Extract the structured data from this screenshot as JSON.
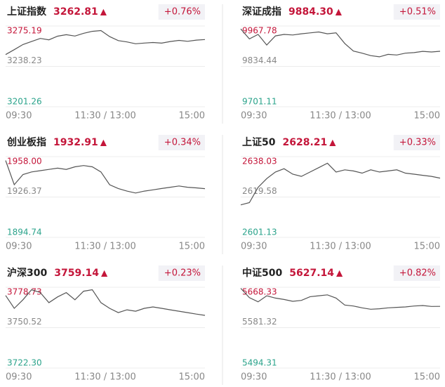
{
  "chart_data": [
    {
      "type": "line",
      "title": "上证指数",
      "price": "3262.81",
      "arrow": "▲",
      "change": "+0.76%",
      "ylim": [
        3201.26,
        3275.19
      ],
      "yticks": [
        3201.26,
        3238.23,
        3275.19
      ],
      "x_labels": [
        "09:30",
        "11:30 / 13:00",
        "15:00"
      ],
      "color": "#555555",
      "values": [
        3249.0,
        3253.5,
        3258.2,
        3261.0,
        3263.8,
        3262.5,
        3265.9,
        3267.2,
        3266.0,
        3268.5,
        3270.3,
        3271.0,
        3265.5,
        3261.8,
        3260.6,
        3258.9,
        3259.6,
        3260.1,
        3259.5,
        3261.0,
        3262.0,
        3261.2,
        3262.3,
        3262.8
      ]
    },
    {
      "type": "line",
      "title": "深证成指",
      "price": "9884.30",
      "arrow": "▲",
      "change": "+0.51%",
      "ylim": [
        9701.11,
        9967.78
      ],
      "yticks": [
        9701.11,
        9834.44,
        9967.78
      ],
      "x_labels": [
        "09:30",
        "11:30 / 13:00",
        "15:00"
      ],
      "color": "#555555",
      "values": [
        9958,
        9925,
        9940,
        9905,
        9935,
        9940,
        9938,
        9942,
        9945,
        9948,
        9942,
        9945,
        9910,
        9885,
        9878,
        9870,
        9866,
        9874,
        9872,
        9878,
        9880,
        9884,
        9882,
        9884.3
      ]
    },
    {
      "type": "line",
      "title": "创业板指",
      "price": "1932.91",
      "arrow": "▲",
      "change": "+0.34%",
      "ylim": [
        1894.74,
        1958
      ],
      "yticks": [
        1894.74,
        1926.37,
        {
          "value": 1958,
          "label": "1958.00"
        }
      ],
      "x_labels": [
        "09:30",
        "11:30 / 13:00",
        "15:00"
      ],
      "color": "#555555",
      "values": [
        1955,
        1936,
        1944,
        1946,
        1947,
        1948,
        1949,
        1948,
        1950,
        1951,
        1950,
        1946,
        1936,
        1933,
        1931,
        1929.5,
        1931,
        1932,
        1933,
        1934,
        1935,
        1934,
        1933.5,
        1932.9
      ]
    },
    {
      "type": "line",
      "title": "上证50",
      "price": "2628.21",
      "arrow": "▲",
      "change": "+0.33%",
      "ylim": [
        2601.13,
        2638.03
      ],
      "yticks": [
        2601.13,
        2619.58,
        2638.03
      ],
      "x_labels": [
        "09:30",
        "11:30 / 13:00",
        "15:00"
      ],
      "color": "#555555",
      "values": [
        2616,
        2617,
        2624,
        2628,
        2631,
        2632.5,
        2630,
        2629,
        2631,
        2633,
        2635,
        2631,
        2632,
        2631.5,
        2630.5,
        2632,
        2631,
        2631.5,
        2632,
        2630.5,
        2630,
        2629.5,
        2629,
        2628.2
      ]
    },
    {
      "type": "line",
      "title": "沪深300",
      "price": "3759.14",
      "arrow": "▲",
      "change": "+0.23%",
      "ylim": [
        3722.3,
        3778.73
      ],
      "yticks": [
        {
          "value": 3722.3,
          "label": "3722.30"
        },
        3750.52,
        3778.73
      ],
      "x_labels": [
        "09:30",
        "11:30 / 13:00",
        "15:00"
      ],
      "color": "#555555",
      "values": [
        3773,
        3764,
        3770,
        3777,
        3775,
        3768,
        3772,
        3775,
        3770,
        3776,
        3777,
        3768,
        3764,
        3761,
        3763,
        3762,
        3764,
        3765,
        3764,
        3763,
        3762,
        3761,
        3760,
        3759.1
      ]
    },
    {
      "type": "line",
      "title": "中证500",
      "price": "5627.14",
      "arrow": "▲",
      "change": "+0.82%",
      "ylim": [
        5494.31,
        5668.33
      ],
      "yticks": [
        5494.31,
        5581.32,
        5668.33
      ],
      "x_labels": [
        "09:30",
        "11:30 / 13:00",
        "15:00"
      ],
      "color": "#555555",
      "values": [
        5666,
        5646,
        5637,
        5650,
        5645,
        5642,
        5638,
        5640,
        5648,
        5650,
        5652,
        5645,
        5630,
        5628,
        5624,
        5621,
        5622,
        5624,
        5625,
        5626,
        5628,
        5629,
        5627,
        5627.1
      ]
    }
  ]
}
